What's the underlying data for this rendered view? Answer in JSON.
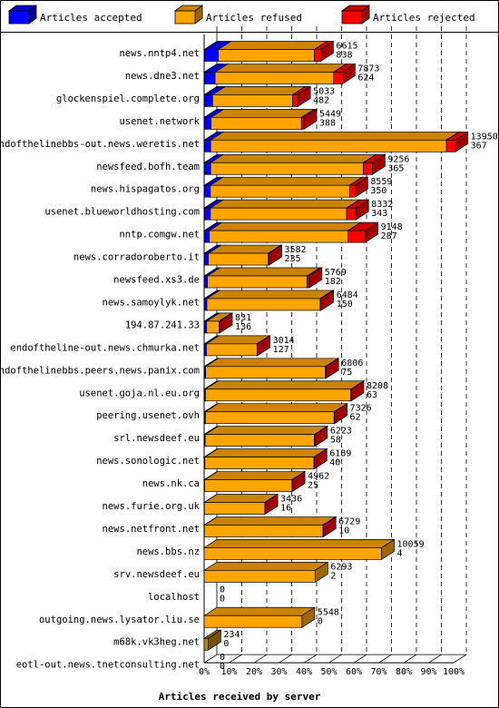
{
  "chart_data": {
    "type": "bar",
    "stacked": true,
    "orientation": "horizontal",
    "xlabel": "Articles received by server",
    "xticks": [
      "0%",
      "10%",
      "20%",
      "30%",
      "40%",
      "50%",
      "60%",
      "70%",
      "80%",
      "90%",
      "100%"
    ],
    "xlim": [
      0,
      100
    ],
    "legend": {
      "position": "top",
      "entries": [
        {
          "label": "Articles accepted",
          "color": "#0000ff"
        },
        {
          "label": "Articles refused",
          "color": "#ffa500"
        },
        {
          "label": "Articles rejected",
          "color": "#ff0000"
        }
      ]
    },
    "colors": {
      "accepted": "#0000ff",
      "refused": "#ffa500",
      "rejected": "#ff0000",
      "other": "#b8860b"
    },
    "categories": [
      "news.nntp4.net",
      "news.dne3.net",
      "glockenspiel.complete.org",
      "usenet.network",
      "endofthelinebbs-out.news.weretis.net",
      "newsfeed.bofh.team",
      "news.hispagatos.org",
      "usenet.blueworldhosting.com",
      "nntp.comgw.net",
      "news.corradoroberto.it",
      "newsfeed.xs3.de",
      "news.samoylyk.net",
      "194.87.241.33",
      "endoftheline-out.news.chmurka.net",
      "endofthelinebbs.peers.news.panix.com",
      "usenet.goja.nl.eu.org",
      "peering.usenet.ovh",
      "srl.newsdeef.eu",
      "news.sonologic.net",
      "news.nk.ca",
      "news.furie.org.uk",
      "news.netfront.net",
      "news.bbs.nz",
      "srv.newsdeef.eu",
      "localhost",
      "outgoing.news.lysator.liu.se",
      "m68k.vk3heg.net",
      "eotl-out.news.tnetconsulting.net"
    ],
    "labels_top": [
      6615,
      7873,
      5033,
      5449,
      13950,
      9256,
      8559,
      8332,
      9148,
      3582,
      5769,
      6484,
      831,
      3014,
      6806,
      8208,
      7326,
      6223,
      6189,
      4962,
      3436,
      6729,
      10059,
      6293,
      0,
      5548,
      234,
      0
    ],
    "labels_bottom": [
      838,
      624,
      482,
      388,
      367,
      365,
      350,
      343,
      287,
      235,
      182,
      150,
      136,
      127,
      75,
      63,
      62,
      58,
      40,
      25,
      16,
      10,
      4,
      2,
      0,
      0,
      0,
      0
    ],
    "series": [
      {
        "name": "Articles accepted",
        "values": [
          5.7,
          4.4,
          3.4,
          2.8,
          2.6,
          2.6,
          2.5,
          2.5,
          2.1,
          1.7,
          1.3,
          1.1,
          1.0,
          0.9,
          0.6,
          0.5,
          0.5,
          0.4,
          0.3,
          0.2,
          0.1,
          0.1,
          0,
          0,
          0,
          0,
          0,
          0
        ]
      },
      {
        "name": "Articles refused",
        "values": [
          38.5,
          47.5,
          32.1,
          36.2,
          94.5,
          61.2,
          55.8,
          54.6,
          55.6,
          24.0,
          40.0,
          45.4,
          5.0,
          20.3,
          48.0,
          58.3,
          51.6,
          43.8,
          43.7,
          35.0,
          24.2,
          47.5,
          71.1,
          44.5,
          0,
          39.2,
          0,
          0
        ]
      },
      {
        "name": "Articles rejected",
        "values": [
          2.5,
          3.5,
          2.0,
          1.0,
          3.5,
          3.6,
          2.2,
          3.7,
          6.9,
          0.3,
          0.8,
          0.3,
          0.2,
          0.1,
          0.2,
          0.1,
          0.1,
          0.1,
          0.1,
          0.1,
          0.1,
          0.1,
          0,
          0,
          0,
          0,
          0,
          0
        ]
      },
      {
        "name": "Other",
        "values": [
          0,
          0,
          0,
          0,
          0,
          0,
          0,
          0,
          0,
          0,
          0,
          0,
          0,
          0,
          0,
          0,
          0,
          0,
          0,
          0,
          0,
          0,
          0,
          0,
          0,
          0,
          1.6,
          0
        ]
      }
    ]
  }
}
